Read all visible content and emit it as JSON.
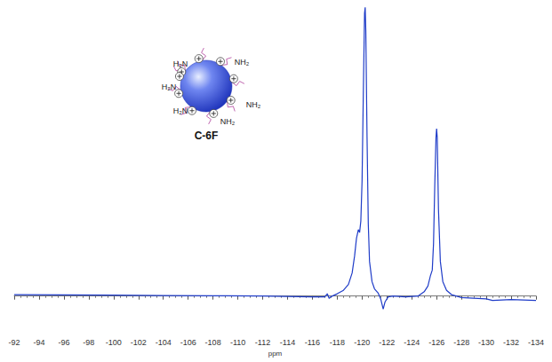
{
  "chart_data": {
    "type": "line",
    "x_label": "ppm",
    "annotations": [
      "C-6F",
      "H₂N",
      "NH₂",
      "H₂N",
      "NH₂",
      "H₂N",
      "NH₂"
    ],
    "color": "#1f3cc8",
    "tick_labels": "x",
    "grid": false,
    "xlim": [
      -92,
      -134
    ],
    "xticks": [
      -92,
      -94,
      -96,
      -98,
      -100,
      -102,
      -104,
      -106,
      -108,
      -110,
      -112,
      -114,
      -116,
      -118,
      -120,
      -122,
      -124,
      -126,
      -128,
      -130,
      -132,
      -134
    ],
    "ylim": [
      -13,
      101
    ],
    "x": [
      -92,
      -96,
      -100,
      -104,
      -108,
      -112,
      -116,
      -117.0,
      -117.2,
      -117.35,
      -117.5,
      -118.0,
      -118.5,
      -118.9,
      -119.2,
      -119.4,
      -119.55,
      -119.7,
      -119.8,
      -119.9,
      -120.0,
      -120.1,
      -120.2,
      -120.25,
      -120.3,
      -120.4,
      -120.5,
      -120.6,
      -120.8,
      -121.0,
      -121.3,
      -121.5,
      -121.7,
      -121.85,
      -122.1,
      -122.5,
      -123.5,
      -124.5,
      -125.0,
      -125.3,
      -125.5,
      -125.65,
      -125.75,
      -125.85,
      -125.95,
      -126.0,
      -126.05,
      -126.15,
      -126.3,
      -126.5,
      -126.8,
      -127.2,
      -128,
      -130,
      -130.5,
      -132,
      -134
    ],
    "values": [
      0.5,
      0.4,
      0.3,
      0.2,
      0.1,
      0,
      -0.3,
      -0.3,
      0.8,
      -0.8,
      -0.2,
      0.8,
      2,
      4,
      8,
      14,
      20,
      23,
      22,
      26,
      40,
      70,
      98,
      100,
      92,
      55,
      25,
      12,
      5,
      2.5,
      1,
      -1,
      -4.5,
      -2,
      -0.3,
      0,
      -0.3,
      0,
      1.5,
      3.5,
      7,
      9,
      18,
      38,
      55,
      58,
      55,
      30,
      12,
      5,
      2,
      0.5,
      -0.5,
      -1,
      -1.5,
      -1.2,
      -1.5
    ]
  }
}
